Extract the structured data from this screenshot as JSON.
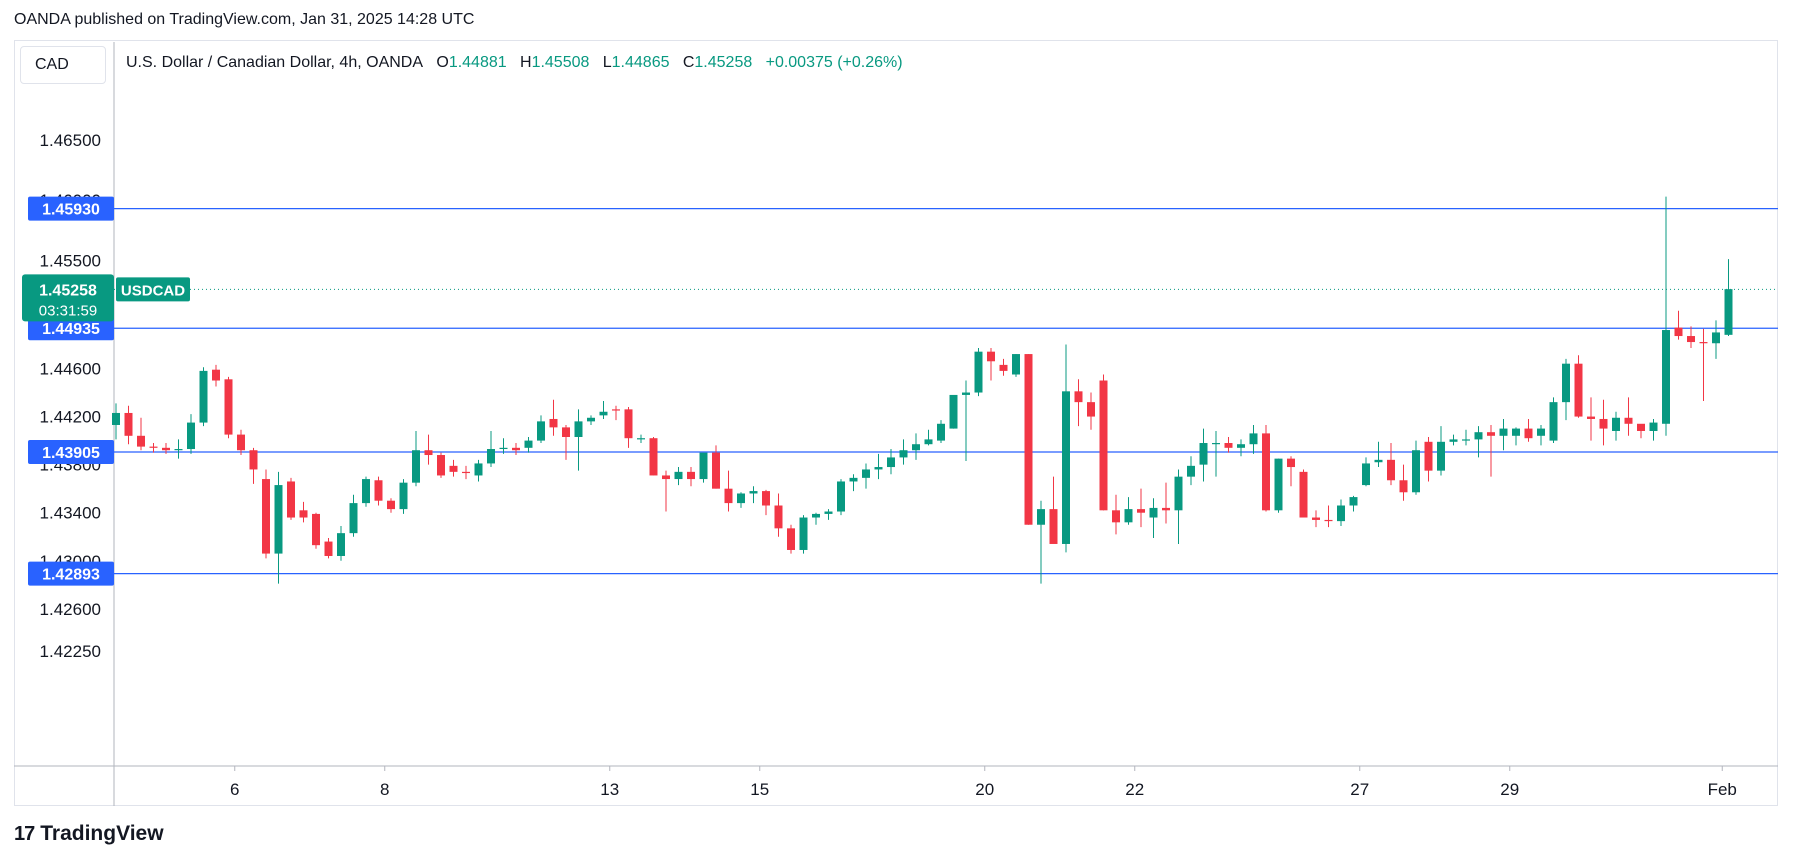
{
  "header": {
    "published": "OANDA published on TradingView.com, Jan 31, 2025 14:28 UTC"
  },
  "currency": "CAD",
  "legend": {
    "symbol": "U.S. Dollar / Canadian Dollar, 4h, OANDA",
    "o_label": "O",
    "o_value": "1.44881",
    "h_label": "H",
    "h_value": "1.45508",
    "l_label": "L",
    "l_value": "1.44865",
    "c_label": "C",
    "c_value": "1.45258",
    "change": "+0.00375 (+0.26%)"
  },
  "brand": {
    "logo": "17",
    "name": "TradingView"
  },
  "colors": {
    "up": "#089981",
    "down": "#f23645",
    "hline": "#2962ff",
    "label_bg": "#2962ff"
  },
  "chart_data": {
    "type": "candlestick",
    "ylim": [
      1.419,
      1.472
    ],
    "y_ticks": [
      "1.46500",
      "1.46000",
      "1.45500",
      "1.44600",
      "1.44200",
      "1.43800",
      "1.43400",
      "1.43000",
      "1.42600",
      "1.42250"
    ],
    "y_tick_values": [
      1.465,
      1.46,
      1.455,
      1.446,
      1.442,
      1.438,
      1.434,
      1.43,
      1.426,
      1.4225
    ],
    "x_ticks": [
      "6",
      "8",
      "13",
      "15",
      "20",
      "22",
      "27",
      "29",
      "Feb"
    ],
    "x_tick_index": [
      9.5,
      21.5,
      39.5,
      51.5,
      69.5,
      81.5,
      99.5,
      111.5,
      128.5
    ],
    "horizontal_lines": [
      {
        "value": 1.4593,
        "label": "1.45930"
      },
      {
        "value": 1.44935,
        "label": "1.44935"
      },
      {
        "value": 1.43905,
        "label": "1.43905"
      },
      {
        "value": 1.42893,
        "label": "1.42893"
      }
    ],
    "last_price": {
      "value": 1.45258,
      "label": "1.45258",
      "countdown": "03:31:59",
      "symbol": "USDCAD"
    },
    "candles": [
      [
        1.4413,
        1.4431,
        1.4401,
        1.4423
      ],
      [
        1.4423,
        1.4429,
        1.4397,
        1.4404
      ],
      [
        1.4404,
        1.4419,
        1.4392,
        1.4395
      ],
      [
        1.4395,
        1.4398,
        1.439,
        1.4394
      ],
      [
        1.4394,
        1.4398,
        1.4389,
        1.4392
      ],
      [
        1.4392,
        1.4401,
        1.4385,
        1.4393
      ],
      [
        1.4393,
        1.4422,
        1.4389,
        1.4415
      ],
      [
        1.4415,
        1.4461,
        1.4412,
        1.4458
      ],
      [
        1.4459,
        1.4463,
        1.4445,
        1.445
      ],
      [
        1.4451,
        1.4453,
        1.4402,
        1.4405
      ],
      [
        1.4405,
        1.4409,
        1.4388,
        1.4392
      ],
      [
        1.4392,
        1.4394,
        1.4364,
        1.4376
      ],
      [
        1.4368,
        1.4376,
        1.4302,
        1.4306
      ],
      [
        1.4306,
        1.4374,
        1.4281,
        1.4363
      ],
      [
        1.4366,
        1.4369,
        1.4334,
        1.4336
      ],
      [
        1.4342,
        1.4349,
        1.4332,
        1.4336
      ],
      [
        1.4339,
        1.434,
        1.431,
        1.4313
      ],
      [
        1.4316,
        1.4319,
        1.4302,
        1.4304
      ],
      [
        1.4304,
        1.4329,
        1.43,
        1.4323
      ],
      [
        1.4323,
        1.4355,
        1.432,
        1.4348
      ],
      [
        1.4348,
        1.437,
        1.4345,
        1.4368
      ],
      [
        1.4367,
        1.437,
        1.4346,
        1.435
      ],
      [
        1.435,
        1.4352,
        1.434,
        1.4343
      ],
      [
        1.4343,
        1.4368,
        1.4339,
        1.4365
      ],
      [
        1.4365,
        1.4408,
        1.4362,
        1.4392
      ],
      [
        1.4392,
        1.4405,
        1.438,
        1.4388
      ],
      [
        1.4388,
        1.439,
        1.4369,
        1.4371
      ],
      [
        1.4379,
        1.4384,
        1.437,
        1.4374
      ],
      [
        1.4374,
        1.4379,
        1.4368,
        1.4373
      ],
      [
        1.4371,
        1.4384,
        1.4366,
        1.4381
      ],
      [
        1.4381,
        1.4408,
        1.4378,
        1.4393
      ],
      [
        1.4393,
        1.4402,
        1.4389,
        1.4394
      ],
      [
        1.4394,
        1.4398,
        1.4388,
        1.4392
      ],
      [
        1.4394,
        1.4403,
        1.439,
        1.44
      ],
      [
        1.44,
        1.4421,
        1.4398,
        1.4416
      ],
      [
        1.4418,
        1.4434,
        1.4404,
        1.4411
      ],
      [
        1.4411,
        1.4413,
        1.4384,
        1.4403
      ],
      [
        1.4403,
        1.4426,
        1.4375,
        1.4416
      ],
      [
        1.4416,
        1.4421,
        1.4413,
        1.4419
      ],
      [
        1.4421,
        1.4433,
        1.4418,
        1.4424
      ],
      [
        1.4426,
        1.4429,
        1.4417,
        1.4425
      ],
      [
        1.4426,
        1.4428,
        1.4394,
        1.4402
      ],
      [
        1.4402,
        1.4405,
        1.4398,
        1.4402
      ],
      [
        1.4402,
        1.4403,
        1.4371,
        1.4371
      ],
      [
        1.4371,
        1.4375,
        1.4341,
        1.4368
      ],
      [
        1.4368,
        1.4378,
        1.4363,
        1.4374
      ],
      [
        1.4374,
        1.4378,
        1.4362,
        1.4368
      ],
      [
        1.4368,
        1.4388,
        1.4365,
        1.439
      ],
      [
        1.439,
        1.4396,
        1.436,
        1.436
      ],
      [
        1.436,
        1.4375,
        1.4341,
        1.4348
      ],
      [
        1.4348,
        1.4357,
        1.4344,
        1.4356
      ],
      [
        1.4356,
        1.4362,
        1.4348,
        1.4358
      ],
      [
        1.4358,
        1.4359,
        1.4338,
        1.4346
      ],
      [
        1.4346,
        1.4356,
        1.432,
        1.4327
      ],
      [
        1.4327,
        1.433,
        1.4306,
        1.4309
      ],
      [
        1.4309,
        1.4338,
        1.4306,
        1.4336
      ],
      [
        1.4336,
        1.434,
        1.433,
        1.4339
      ],
      [
        1.4339,
        1.4343,
        1.4334,
        1.4341
      ],
      [
        1.4341,
        1.4368,
        1.4338,
        1.4366
      ],
      [
        1.4366,
        1.4372,
        1.4358,
        1.4369
      ],
      [
        1.4369,
        1.4381,
        1.436,
        1.4376
      ],
      [
        1.4376,
        1.4389,
        1.4368,
        1.4378
      ],
      [
        1.4378,
        1.4393,
        1.4372,
        1.4386
      ],
      [
        1.4386,
        1.4401,
        1.438,
        1.4392
      ],
      [
        1.4392,
        1.4406,
        1.4384,
        1.4397
      ],
      [
        1.4397,
        1.4409,
        1.4396,
        1.4401
      ],
      [
        1.44,
        1.4417,
        1.4398,
        1.4414
      ],
      [
        1.441,
        1.4437,
        1.441,
        1.4438
      ],
      [
        1.4438,
        1.445,
        1.4383,
        1.444
      ],
      [
        1.444,
        1.4477,
        1.4437,
        1.4474
      ],
      [
        1.4474,
        1.4477,
        1.445,
        1.4466
      ],
      [
        1.4463,
        1.4468,
        1.4454,
        1.4458
      ],
      [
        1.4455,
        1.4472,
        1.4453,
        1.4472
      ],
      [
        1.4472,
        1.4472,
        1.433,
        1.433
      ],
      [
        1.433,
        1.435,
        1.4281,
        1.4343
      ],
      [
        1.4343,
        1.437,
        1.4316,
        1.4314
      ],
      [
        1.4314,
        1.448,
        1.4307,
        1.4441
      ],
      [
        1.4441,
        1.4451,
        1.4412,
        1.4432
      ],
      [
        1.4432,
        1.444,
        1.4409,
        1.442
      ],
      [
        1.445,
        1.4455,
        1.4342,
        1.4342
      ],
      [
        1.4342,
        1.4355,
        1.4322,
        1.4332
      ],
      [
        1.4332,
        1.4353,
        1.433,
        1.4343
      ],
      [
        1.4343,
        1.436,
        1.4328,
        1.434
      ],
      [
        1.4336,
        1.4352,
        1.4319,
        1.4344
      ],
      [
        1.4344,
        1.4365,
        1.4331,
        1.4342
      ],
      [
        1.4342,
        1.4376,
        1.4314,
        1.437
      ],
      [
        1.437,
        1.4387,
        1.4363,
        1.4379
      ],
      [
        1.438,
        1.441,
        1.4366,
        1.4398
      ],
      [
        1.4398,
        1.4408,
        1.437,
        1.4398
      ],
      [
        1.4398,
        1.4403,
        1.439,
        1.4394
      ],
      [
        1.4394,
        1.4401,
        1.4387,
        1.4397
      ],
      [
        1.4397,
        1.4413,
        1.4389,
        1.4406
      ],
      [
        1.4406,
        1.4413,
        1.4341,
        1.4342
      ],
      [
        1.4342,
        1.4385,
        1.434,
        1.4385
      ],
      [
        1.4385,
        1.4387,
        1.4362,
        1.4378
      ],
      [
        1.4374,
        1.4376,
        1.4336,
        1.4336
      ],
      [
        1.4336,
        1.4342,
        1.4328,
        1.4334
      ],
      [
        1.4334,
        1.4346,
        1.4328,
        1.4333
      ],
      [
        1.4333,
        1.4351,
        1.4329,
        1.4346
      ],
      [
        1.4346,
        1.4354,
        1.4341,
        1.4353
      ],
      [
        1.4363,
        1.4386,
        1.4362,
        1.4381
      ],
      [
        1.4382,
        1.4399,
        1.4378,
        1.4384
      ],
      [
        1.4384,
        1.4398,
        1.4363,
        1.4367
      ],
      [
        1.4367,
        1.438,
        1.435,
        1.4357
      ],
      [
        1.4357,
        1.44,
        1.4355,
        1.4392
      ],
      [
        1.4399,
        1.4403,
        1.4366,
        1.4375
      ],
      [
        1.4375,
        1.4412,
        1.4371,
        1.4399
      ],
      [
        1.4399,
        1.4405,
        1.4396,
        1.4401
      ],
      [
        1.44,
        1.4409,
        1.4396,
        1.4401
      ],
      [
        1.4401,
        1.4412,
        1.4386,
        1.4407
      ],
      [
        1.4407,
        1.4413,
        1.437,
        1.4404
      ],
      [
        1.4404,
        1.4418,
        1.4392,
        1.441
      ],
      [
        1.4404,
        1.4411,
        1.4396,
        1.441
      ],
      [
        1.441,
        1.4418,
        1.4399,
        1.4402
      ],
      [
        1.4404,
        1.4413,
        1.4396,
        1.441
      ],
      [
        1.44,
        1.4436,
        1.4398,
        1.4432
      ],
      [
        1.4432,
        1.4468,
        1.4417,
        1.4464
      ],
      [
        1.4464,
        1.4471,
        1.4419,
        1.442
      ],
      [
        1.442,
        1.4436,
        1.44,
        1.4418
      ],
      [
        1.4418,
        1.4434,
        1.4396,
        1.441
      ],
      [
        1.4408,
        1.4424,
        1.44,
        1.4419
      ],
      [
        1.4419,
        1.4436,
        1.4404,
        1.4414
      ],
      [
        1.4414,
        1.4413,
        1.4402,
        1.4408
      ],
      [
        1.4408,
        1.4418,
        1.44,
        1.4415
      ],
      [
        1.4414,
        1.4603,
        1.4404,
        1.4492
      ],
      [
        1.4494,
        1.4508,
        1.4484,
        1.4487
      ],
      [
        1.4487,
        1.4495,
        1.4477,
        1.4482
      ],
      [
        1.4482,
        1.4493,
        1.4433,
        1.4481
      ],
      [
        1.4481,
        1.45,
        1.4468,
        1.449
      ],
      [
        1.4488,
        1.4551,
        1.4487,
        1.4526
      ]
    ]
  }
}
